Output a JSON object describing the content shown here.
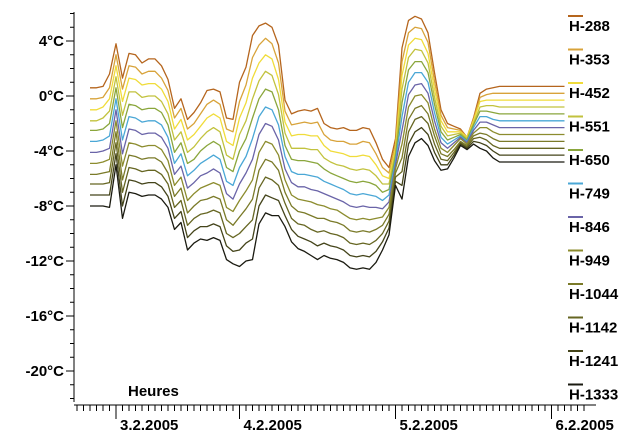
{
  "chart_data": {
    "type": "line",
    "title": "",
    "xlabel": "Heures",
    "ylabel": "",
    "xlim": [
      0,
      94
    ],
    "ylim": [
      -23,
      6
    ],
    "grid": false,
    "legend_position": "right",
    "y_ticks": [
      {
        "value": 4,
        "label": "4°C"
      },
      {
        "value": 0,
        "label": "0°C"
      },
      {
        "value": -4,
        "label": "-4°C"
      },
      {
        "value": -8,
        "label": "-8°C"
      },
      {
        "value": -12,
        "label": "-12°C"
      },
      {
        "value": -16,
        "label": "-16°C"
      },
      {
        "value": -20,
        "label": "-20°C"
      }
    ],
    "x_day_labels": [
      {
        "hour": 0,
        "label": "3.2.2005"
      },
      {
        "hour": 19,
        "label": "4.2.2005"
      },
      {
        "hour": 43,
        "label": "5.2.2005"
      },
      {
        "hour": 67,
        "label": "6.2.2005"
      }
    ],
    "x": [
      -4,
      -3,
      -2,
      -1,
      0,
      1,
      2,
      3,
      4,
      5,
      6,
      7,
      8,
      9,
      10,
      11,
      12,
      13,
      14,
      15,
      16,
      17,
      18,
      19,
      20,
      21,
      22,
      23,
      24,
      25,
      26,
      27,
      28,
      29,
      30,
      31,
      32,
      33,
      34,
      35,
      36,
      37,
      38,
      39,
      40,
      41,
      42,
      43,
      44,
      45,
      46,
      47,
      48,
      49,
      50,
      51,
      52,
      53,
      54,
      55,
      56,
      57,
      58,
      59,
      60,
      61,
      62,
      63,
      64,
      65,
      66,
      67,
      68,
      69,
      70,
      71,
      72
    ],
    "series": [
      {
        "name": "H-288",
        "color": "#b5651d",
        "values": [
          0.6,
          0.6,
          0.7,
          1.6,
          3.8,
          1.3,
          3.1,
          3.0,
          2.4,
          2.7,
          2.7,
          2.2,
          1.2,
          -0.9,
          -0.2,
          -1.7,
          -1.2,
          -0.5,
          0.4,
          0.5,
          0.3,
          -1.6,
          -1.7,
          1.0,
          2.1,
          4.4,
          5.1,
          5.3,
          5.0,
          3.7,
          -0.3,
          -1.3,
          -1.1,
          -1.0,
          -1.1,
          -0.9,
          -2.0,
          -2.3,
          -2.4,
          -2.3,
          -2.5,
          -2.5,
          -2.3,
          -2.4,
          -3.4,
          -4.6,
          -5.2,
          -3.1,
          3.5,
          5.5,
          5.8,
          5.6,
          4.6,
          1.7,
          -1.0,
          -2.0,
          -2.2,
          -2.4,
          -3.0,
          -1.6,
          0.2,
          0.5,
          0.6,
          0.7,
          0.7,
          0.7,
          0.7,
          0.7,
          0.7,
          0.7,
          0.7,
          0.7,
          0.7,
          0.7,
          0.7,
          0.7,
          0.7
        ]
      },
      {
        "name": "H-353",
        "color": "#d8a33a",
        "values": [
          -0.2,
          -0.2,
          -0.1,
          0.6,
          3.0,
          0.5,
          2.2,
          2.1,
          1.6,
          1.8,
          1.8,
          1.3,
          0.4,
          -1.6,
          -0.9,
          -2.4,
          -2.0,
          -1.3,
          -0.6,
          -0.3,
          -0.6,
          -2.4,
          -2.6,
          -0.4,
          0.8,
          2.8,
          3.7,
          4.2,
          3.8,
          2.4,
          -1.1,
          -2.1,
          -2.0,
          -1.9,
          -2.0,
          -1.9,
          -2.8,
          -3.2,
          -3.3,
          -3.3,
          -3.5,
          -3.5,
          -3.3,
          -3.4,
          -4.2,
          -5.2,
          -5.6,
          -3.5,
          2.5,
          4.6,
          5.0,
          4.9,
          3.9,
          1.1,
          -1.4,
          -2.3,
          -2.4,
          -2.5,
          -3.0,
          -1.7,
          -0.1,
          0.1,
          0.2,
          0.2,
          0.2,
          0.2,
          0.2,
          0.2,
          0.2,
          0.2,
          0.2,
          0.2,
          0.2,
          0.2,
          0.2,
          0.2,
          0.2
        ]
      },
      {
        "name": "H-452",
        "color": "#f0dc3a",
        "values": [
          -1.0,
          -1.0,
          -0.8,
          -0.2,
          2.2,
          -0.4,
          1.3,
          1.2,
          0.8,
          0.9,
          0.9,
          0.5,
          -0.4,
          -2.4,
          -1.7,
          -3.2,
          -2.8,
          -2.2,
          -1.6,
          -1.3,
          -1.6,
          -3.3,
          -3.6,
          -1.6,
          -0.5,
          1.3,
          2.4,
          3.0,
          2.7,
          1.2,
          -1.9,
          -2.9,
          -2.8,
          -2.8,
          -2.9,
          -2.9,
          -3.6,
          -4.0,
          -4.1,
          -4.2,
          -4.4,
          -4.4,
          -4.3,
          -4.4,
          -5.0,
          -5.8,
          -6.0,
          -3.8,
          1.5,
          3.7,
          4.2,
          4.1,
          3.1,
          0.5,
          -1.8,
          -2.6,
          -2.6,
          -2.6,
          -3.0,
          -1.8,
          -0.4,
          -0.3,
          -0.3,
          -0.3,
          -0.3,
          -0.3,
          -0.3,
          -0.3,
          -0.3,
          -0.3,
          -0.3,
          -0.3,
          -0.3,
          -0.3,
          -0.3,
          -0.3,
          -0.3
        ]
      },
      {
        "name": "H-551",
        "color": "#c2c23e",
        "values": [
          -1.8,
          -1.8,
          -1.6,
          -1.1,
          1.4,
          -1.4,
          0.3,
          0.3,
          -0.1,
          0.0,
          0.0,
          -0.4,
          -1.3,
          -3.2,
          -2.6,
          -4.1,
          -3.7,
          -3.1,
          -2.6,
          -2.3,
          -2.6,
          -4.3,
          -4.6,
          -2.8,
          -1.8,
          -0.2,
          1.1,
          1.8,
          1.5,
          0.1,
          -2.7,
          -3.8,
          -3.8,
          -3.8,
          -3.9,
          -3.9,
          -4.5,
          -4.8,
          -5.0,
          -5.1,
          -5.3,
          -5.4,
          -5.3,
          -5.4,
          -5.8,
          -6.4,
          -6.4,
          -4.1,
          0.5,
          2.8,
          3.4,
          3.3,
          2.4,
          -0.1,
          -2.2,
          -2.9,
          -2.8,
          -2.7,
          -3.1,
          -2.0,
          -0.8,
          -0.7,
          -0.7,
          -0.8,
          -0.8,
          -0.8,
          -0.8,
          -0.8,
          -0.8,
          -0.8,
          -0.8,
          -0.8,
          -0.8,
          -0.8,
          -0.8,
          -0.8,
          -0.8
        ]
      },
      {
        "name": "H-650",
        "color": "#8aa63c",
        "values": [
          -2.5,
          -2.5,
          -2.4,
          -2.0,
          0.6,
          -2.3,
          -0.6,
          -0.7,
          -1.0,
          -0.9,
          -0.9,
          -1.2,
          -2.1,
          -4.1,
          -3.4,
          -4.9,
          -4.6,
          -4.0,
          -3.6,
          -3.3,
          -3.6,
          -5.2,
          -5.5,
          -4.0,
          -3.1,
          -1.6,
          -0.2,
          0.5,
          0.3,
          -1.0,
          -3.6,
          -4.6,
          -4.7,
          -4.7,
          -4.8,
          -4.9,
          -5.3,
          -5.6,
          -5.8,
          -6.0,
          -6.2,
          -6.3,
          -6.2,
          -6.3,
          -6.5,
          -7.0,
          -6.8,
          -4.4,
          -0.5,
          1.9,
          2.5,
          2.5,
          1.7,
          -0.6,
          -2.6,
          -3.2,
          -3.0,
          -2.8,
          -3.2,
          -2.1,
          -1.1,
          -1.1,
          -1.2,
          -1.3,
          -1.3,
          -1.3,
          -1.3,
          -1.3,
          -1.3,
          -1.3,
          -1.3,
          -1.3,
          -1.3,
          -1.3,
          -1.3,
          -1.3,
          -1.3
        ]
      },
      {
        "name": "H-749",
        "color": "#4aa7d6",
        "values": [
          -3.3,
          -3.3,
          -3.2,
          -2.9,
          -0.2,
          -3.2,
          -1.5,
          -1.6,
          -1.9,
          -1.8,
          -1.8,
          -2.1,
          -3.0,
          -4.9,
          -4.2,
          -5.8,
          -5.4,
          -4.9,
          -4.6,
          -4.3,
          -4.6,
          -6.2,
          -6.5,
          -5.2,
          -4.4,
          -3.1,
          -1.5,
          -0.8,
          -1.0,
          -2.1,
          -4.4,
          -5.5,
          -5.7,
          -5.7,
          -5.8,
          -5.9,
          -6.2,
          -6.4,
          -6.6,
          -6.8,
          -7.1,
          -7.2,
          -7.1,
          -7.2,
          -7.3,
          -7.6,
          -7.2,
          -4.7,
          -1.5,
          1.0,
          1.7,
          1.7,
          1.0,
          -1.2,
          -3.0,
          -3.5,
          -3.2,
          -2.9,
          -3.3,
          -2.3,
          -1.5,
          -1.5,
          -1.7,
          -1.8,
          -1.8,
          -1.8,
          -1.8,
          -1.8,
          -1.8,
          -1.8,
          -1.8,
          -1.8,
          -1.8,
          -1.8,
          -1.8,
          -1.8,
          -1.8
        ]
      },
      {
        "name": "H-846",
        "color": "#6a64a8",
        "values": [
          -4.1,
          -4.1,
          -4.0,
          -3.8,
          -1.0,
          -4.2,
          -2.4,
          -2.5,
          -2.8,
          -2.7,
          -2.7,
          -3.0,
          -3.8,
          -5.7,
          -5.1,
          -6.7,
          -6.3,
          -5.8,
          -5.6,
          -5.3,
          -5.6,
          -7.1,
          -7.5,
          -6.4,
          -5.6,
          -4.6,
          -2.8,
          -2.0,
          -2.2,
          -3.2,
          -5.3,
          -6.3,
          -6.6,
          -6.6,
          -6.8,
          -6.9,
          -7.1,
          -7.3,
          -7.5,
          -7.7,
          -8.0,
          -8.1,
          -8.0,
          -8.1,
          -8.1,
          -8.2,
          -7.7,
          -5.0,
          -2.5,
          0.1,
          0.8,
          0.9,
          0.2,
          -1.8,
          -3.4,
          -3.8,
          -3.4,
          -3.0,
          -3.4,
          -2.5,
          -1.9,
          -1.9,
          -2.1,
          -2.3,
          -2.3,
          -2.3,
          -2.3,
          -2.3,
          -2.3,
          -2.3,
          -2.3,
          -2.3,
          -2.3,
          -2.3,
          -2.3,
          -2.3,
          -2.3
        ]
      },
      {
        "name": "H-949",
        "color": "#8c8c2e",
        "values": [
          -4.9,
          -4.9,
          -4.8,
          -4.6,
          -1.8,
          -5.1,
          -3.4,
          -3.5,
          -3.7,
          -3.6,
          -3.6,
          -3.9,
          -4.7,
          -6.5,
          -5.9,
          -7.6,
          -7.1,
          -6.7,
          -6.5,
          -6.3,
          -6.5,
          -8.1,
          -8.4,
          -7.6,
          -6.9,
          -6.1,
          -4.1,
          -3.3,
          -3.5,
          -4.3,
          -6.1,
          -7.2,
          -7.5,
          -7.6,
          -7.7,
          -7.9,
          -8.0,
          -8.2,
          -8.3,
          -8.6,
          -8.9,
          -9.0,
          -8.9,
          -9.0,
          -8.9,
          -8.8,
          -8.1,
          -5.3,
          -3.5,
          -0.8,
          0.0,
          0.1,
          -0.5,
          -2.4,
          -3.8,
          -4.1,
          -3.6,
          -3.1,
          -3.5,
          -2.7,
          -2.3,
          -2.3,
          -2.6,
          -2.8,
          -2.8,
          -2.8,
          -2.8,
          -2.8,
          -2.8,
          -2.8,
          -2.8,
          -2.8,
          -2.8,
          -2.8,
          -2.8,
          -2.8,
          -2.8
        ]
      },
      {
        "name": "H-1044",
        "color": "#7a7a28",
        "values": [
          -5.7,
          -5.7,
          -5.6,
          -5.5,
          -2.6,
          -6.1,
          -4.3,
          -4.4,
          -4.6,
          -4.5,
          -4.5,
          -4.8,
          -5.6,
          -7.3,
          -6.7,
          -8.5,
          -8.0,
          -7.6,
          -7.5,
          -7.3,
          -7.5,
          -9.0,
          -9.4,
          -8.8,
          -8.2,
          -7.5,
          -5.4,
          -4.6,
          -4.8,
          -5.4,
          -7.0,
          -8.0,
          -8.4,
          -8.5,
          -8.7,
          -8.9,
          -8.9,
          -9.1,
          -9.2,
          -9.4,
          -9.8,
          -9.9,
          -9.8,
          -9.9,
          -9.7,
          -9.4,
          -8.6,
          -5.6,
          -4.5,
          -1.7,
          -0.9,
          -0.7,
          -1.3,
          -2.9,
          -4.2,
          -4.4,
          -3.9,
          -3.3,
          -3.6,
          -2.9,
          -2.7,
          -2.8,
          -3.1,
          -3.3,
          -3.3,
          -3.3,
          -3.3,
          -3.3,
          -3.3,
          -3.3,
          -3.3,
          -3.3,
          -3.3,
          -3.3,
          -3.3,
          -3.3,
          -3.3
        ]
      },
      {
        "name": "H-1142",
        "color": "#666622",
        "values": [
          -6.4,
          -6.4,
          -6.4,
          -6.3,
          -3.4,
          -7.0,
          -5.2,
          -5.3,
          -5.5,
          -5.4,
          -5.4,
          -5.7,
          -6.4,
          -8.1,
          -7.6,
          -9.4,
          -8.9,
          -8.6,
          -8.5,
          -8.3,
          -8.5,
          -10.0,
          -10.3,
          -10.0,
          -9.5,
          -9.0,
          -6.7,
          -5.9,
          -6.1,
          -6.5,
          -7.8,
          -8.9,
          -9.3,
          -9.4,
          -9.7,
          -9.9,
          -9.8,
          -10.0,
          -10.1,
          -10.3,
          -10.7,
          -10.8,
          -10.7,
          -10.8,
          -10.5,
          -10.0,
          -9.1,
          -5.9,
          -5.5,
          -2.6,
          -1.7,
          -1.5,
          -2.0,
          -3.5,
          -4.6,
          -4.7,
          -4.1,
          -3.4,
          -3.7,
          -3.1,
          -3.0,
          -3.2,
          -3.6,
          -3.8,
          -3.8,
          -3.8,
          -3.8,
          -3.8,
          -3.8,
          -3.8,
          -3.8,
          -3.8,
          -3.8,
          -3.8,
          -3.8,
          -3.8,
          -3.8
        ]
      },
      {
        "name": "H-1241",
        "color": "#44441a",
        "values": [
          -7.2,
          -7.2,
          -7.2,
          -7.2,
          -4.2,
          -8.0,
          -6.1,
          -6.2,
          -6.4,
          -6.3,
          -6.3,
          -6.6,
          -7.3,
          -8.9,
          -8.4,
          -10.3,
          -9.8,
          -9.5,
          -9.5,
          -9.3,
          -9.5,
          -10.9,
          -11.3,
          -11.2,
          -10.7,
          -10.4,
          -8.0,
          -7.2,
          -7.4,
          -7.6,
          -8.7,
          -9.7,
          -10.2,
          -10.4,
          -10.6,
          -10.9,
          -10.7,
          -10.9,
          -11.0,
          -11.2,
          -11.6,
          -11.7,
          -11.6,
          -11.7,
          -11.3,
          -10.6,
          -9.6,
          -6.2,
          -6.5,
          -3.5,
          -2.6,
          -2.3,
          -2.8,
          -4.1,
          -5.0,
          -5.0,
          -4.3,
          -3.5,
          -3.8,
          -3.3,
          -3.4,
          -3.6,
          -4.0,
          -4.3,
          -4.3,
          -4.3,
          -4.3,
          -4.3,
          -4.3,
          -4.3,
          -4.3,
          -4.3,
          -4.3,
          -4.3,
          -4.3,
          -4.3,
          -4.3
        ]
      },
      {
        "name": "H-1333",
        "color": "#1a1a10",
        "values": [
          -8.0,
          -8.0,
          -8.0,
          -8.1,
          -5.0,
          -8.9,
          -7.0,
          -7.1,
          -7.3,
          -7.2,
          -7.2,
          -7.5,
          -8.1,
          -9.7,
          -9.2,
          -11.2,
          -10.7,
          -10.4,
          -10.5,
          -10.3,
          -10.5,
          -11.9,
          -12.2,
          -12.4,
          -12.0,
          -11.9,
          -9.3,
          -8.5,
          -8.7,
          -8.7,
          -9.5,
          -10.6,
          -11.1,
          -11.3,
          -11.6,
          -11.9,
          -11.6,
          -11.8,
          -11.9,
          -12.1,
          -12.5,
          -12.6,
          -12.5,
          -12.6,
          -12.1,
          -11.2,
          -10.1,
          -6.5,
          -7.5,
          -4.4,
          -3.4,
          -3.1,
          -3.6,
          -4.7,
          -5.4,
          -5.3,
          -4.5,
          -3.6,
          -3.9,
          -3.5,
          -3.8,
          -4.0,
          -4.5,
          -4.8,
          -4.8,
          -4.8,
          -4.8,
          -4.8,
          -4.8,
          -4.8,
          -4.8,
          -4.8,
          -4.8,
          -4.8,
          -4.8,
          -4.8,
          -4.8
        ]
      }
    ]
  }
}
